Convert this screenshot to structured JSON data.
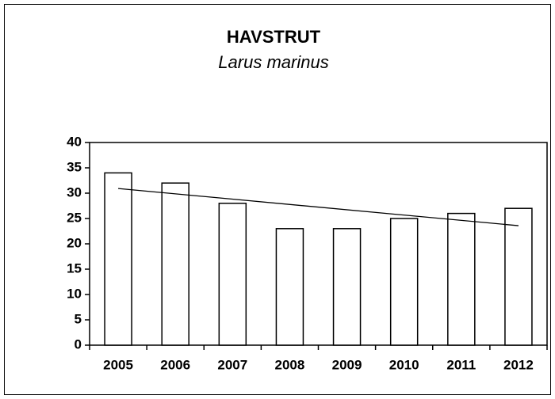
{
  "chart_data": {
    "type": "bar",
    "title": "HAVSTRUT",
    "subtitle": "Larus marinus",
    "categories": [
      "2005",
      "2006",
      "2007",
      "2008",
      "2009",
      "2010",
      "2011",
      "2012"
    ],
    "values": [
      34,
      32,
      28,
      23,
      23,
      25,
      26,
      27
    ],
    "color": "#ffffff",
    "ylim": [
      0,
      40
    ],
    "yticks": [
      0,
      5,
      10,
      15,
      20,
      25,
      30,
      35,
      40
    ],
    "grid": false,
    "trendline": "linear"
  }
}
